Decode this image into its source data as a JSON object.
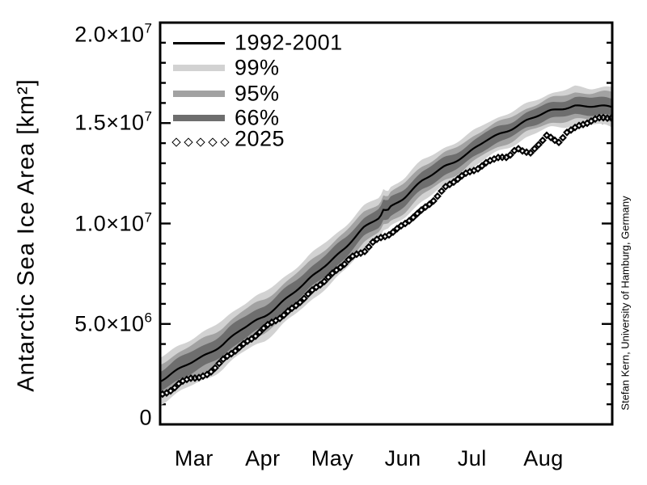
{
  "y_axis": {
    "title": "Antarctic Sea Ice Area [km²]",
    "range_km2": [
      0,
      20000000
    ],
    "ticks": [
      {
        "v": 0,
        "main": "0",
        "exp": ""
      },
      {
        "v": 5,
        "main": "5.0×10",
        "exp": "6"
      },
      {
        "v": 10,
        "main": "1.0×10",
        "exp": "7"
      },
      {
        "v": 15,
        "main": "1.5×10",
        "exp": "7"
      },
      {
        "v": 20,
        "main": "2.0×10",
        "exp": "7"
      }
    ],
    "minor_tick_step_km2": 1000000
  },
  "x_axis": {
    "months": [
      {
        "label": "Mar",
        "f": 0.075
      },
      {
        "label": "Apr",
        "f": 0.227
      },
      {
        "label": "May",
        "f": 0.381
      },
      {
        "label": "Jun",
        "f": 0.537
      },
      {
        "label": "Jul",
        "f": 0.69
      },
      {
        "label": "Aug",
        "f": 0.848
      }
    ]
  },
  "legend": [
    {
      "label": "1992-2001",
      "type": "line",
      "color": "#000000"
    },
    {
      "label": "99%",
      "type": "band",
      "color": "#d2d2d2"
    },
    {
      "label": "95%",
      "type": "band",
      "color": "#a2a2a2"
    },
    {
      "label": "66%",
      "type": "band",
      "color": "#6e6e6e"
    },
    {
      "label": "2025",
      "type": "diamonds",
      "color": "#000000"
    }
  ],
  "credit": "Stefan Kern, University of Hamburg, Germany",
  "chart_data": {
    "type": "line",
    "title": "",
    "xlabel": "",
    "ylabel": "Antarctic Sea Ice Area [km²]",
    "ylim": [
      0,
      20000000
    ],
    "grid": false,
    "legend_position": "top-left-inside",
    "value_unit": "1e6 km^2",
    "x_unit": "fraction of shown span (early Mar to mid Sep)",
    "series": [
      {
        "name": "1992-2001 climatology mean",
        "style": "solid black line",
        "f": [
          0.0,
          0.05,
          0.09,
          0.14,
          0.18,
          0.23,
          0.27,
          0.32,
          0.36,
          0.41,
          0.45,
          0.486,
          0.495,
          0.502,
          0.51,
          0.54,
          0.58,
          0.63,
          0.68,
          0.72,
          0.77,
          0.81,
          0.863,
          0.917,
          0.953,
          1.0
        ],
        "v": [
          2.2,
          2.8,
          3.3,
          4.0,
          4.7,
          5.4,
          6.15,
          7.0,
          7.85,
          8.8,
          9.7,
          10.3,
          10.75,
          10.6,
          10.85,
          11.3,
          12.1,
          12.9,
          13.5,
          14.1,
          14.65,
          15.1,
          15.55,
          15.9,
          15.85,
          15.8
        ]
      },
      {
        "name": "2025",
        "style": "dense open diamonds",
        "f": [
          0.0,
          0.03,
          0.055,
          0.067,
          0.085,
          0.1,
          0.13,
          0.18,
          0.22,
          0.27,
          0.31,
          0.36,
          0.4,
          0.42,
          0.45,
          0.47,
          0.49,
          0.54,
          0.576,
          0.63,
          0.66,
          0.69,
          0.72,
          0.75,
          0.77,
          0.79,
          0.82,
          0.855,
          0.88,
          0.9,
          0.93,
          0.953,
          0.98,
          1.0
        ],
        "v": [
          1.5,
          1.75,
          2.2,
          2.35,
          2.35,
          2.5,
          3.0,
          3.9,
          4.6,
          5.35,
          6.2,
          7.06,
          7.9,
          8.3,
          8.5,
          9.0,
          9.3,
          9.95,
          10.6,
          11.8,
          12.2,
          12.6,
          13.0,
          13.3,
          13.2,
          13.8,
          13.55,
          14.4,
          13.95,
          14.6,
          14.9,
          15.05,
          15.2,
          15.3
        ]
      }
    ],
    "bands": [
      {
        "name": "99%",
        "color": "#d2d2d2",
        "half_width": [
          1.15,
          1.15,
          1.2,
          1.2,
          1.2,
          1.2,
          1.15,
          1.15,
          1.15,
          1.1,
          1.05,
          1.0,
          1.05,
          0.95,
          1.0,
          1.0,
          1.0,
          0.95,
          0.9,
          0.88,
          0.85,
          0.82,
          0.85,
          0.95,
          0.9,
          1.0
        ]
      },
      {
        "name": "95%",
        "color": "#a2a2a2",
        "half_width": [
          0.83,
          0.83,
          0.86,
          0.86,
          0.86,
          0.86,
          0.83,
          0.83,
          0.83,
          0.79,
          0.76,
          0.72,
          0.76,
          0.68,
          0.72,
          0.72,
          0.72,
          0.68,
          0.65,
          0.63,
          0.61,
          0.59,
          0.61,
          0.68,
          0.65,
          0.72
        ]
      },
      {
        "name": "66%",
        "color": "#6e6e6e",
        "half_width": [
          0.52,
          0.52,
          0.54,
          0.54,
          0.54,
          0.54,
          0.52,
          0.52,
          0.52,
          0.5,
          0.47,
          0.45,
          0.47,
          0.43,
          0.45,
          0.45,
          0.45,
          0.43,
          0.41,
          0.4,
          0.38,
          0.37,
          0.38,
          0.43,
          0.41,
          0.45
        ]
      }
    ]
  }
}
